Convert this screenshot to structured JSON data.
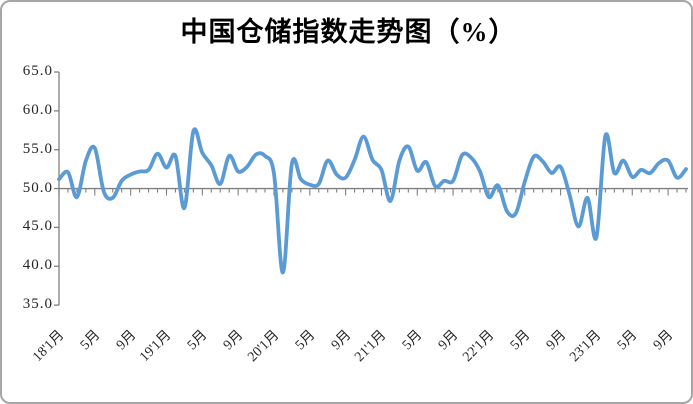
{
  "title": "中国仓储指数走势图（%）",
  "chart_data": {
    "type": "line",
    "title": "中国仓储指数走势图（%）",
    "line_style": "smooth",
    "line_color": "#5B9BD5",
    "axis_color": "#7f7f7f",
    "grid": "off",
    "legend": "none",
    "ylim": [
      35.0,
      65.0
    ],
    "y_tick_step": 5.0,
    "y_tick_labels": [
      "65.0",
      "60.0",
      "55.0",
      "50.0",
      "45.0",
      "40.0",
      "35.0"
    ],
    "category_axis_crosses_at": 50.0,
    "x_tick_label_every_n_months": 4,
    "x_tick_labels": [
      "18'1月",
      "5月",
      "9月",
      "19'1月",
      "5月",
      "9月",
      "20'1月",
      "5月",
      "9月",
      "21'1月",
      "5月",
      "9月",
      "22'1月",
      "5月",
      "9月",
      "23'1月",
      "5月",
      "9月"
    ],
    "x": [
      "2018-01",
      "2018-02",
      "2018-03",
      "2018-04",
      "2018-05",
      "2018-06",
      "2018-07",
      "2018-08",
      "2018-09",
      "2018-10",
      "2018-11",
      "2018-12",
      "2019-01",
      "2019-02",
      "2019-03",
      "2019-04",
      "2019-05",
      "2019-06",
      "2019-07",
      "2019-08",
      "2019-09",
      "2019-10",
      "2019-11",
      "2019-12",
      "2020-01",
      "2020-02",
      "2020-03",
      "2020-04",
      "2020-05",
      "2020-06",
      "2020-07",
      "2020-08",
      "2020-09",
      "2020-10",
      "2020-11",
      "2020-12",
      "2021-01",
      "2021-02",
      "2021-03",
      "2021-04",
      "2021-05",
      "2021-06",
      "2021-07",
      "2021-08",
      "2021-09",
      "2021-10",
      "2021-11",
      "2021-12",
      "2022-01",
      "2022-02",
      "2022-03",
      "2022-04",
      "2022-05",
      "2022-06",
      "2022-07",
      "2022-08",
      "2022-09",
      "2022-10",
      "2022-11",
      "2022-12",
      "2023-01",
      "2023-02",
      "2023-03",
      "2023-04",
      "2023-05",
      "2023-06",
      "2023-07",
      "2023-08",
      "2023-09",
      "2023-10",
      "2023-11"
    ],
    "series": [
      {
        "name": "中国仓储指数",
        "values": [
          51.2,
          52.1,
          48.9,
          53.6,
          55.2,
          49.6,
          48.8,
          51.0,
          51.8,
          52.2,
          52.4,
          54.5,
          52.7,
          54.2,
          47.5,
          57.4,
          54.6,
          53.0,
          50.6,
          54.2,
          52.2,
          52.8,
          54.4,
          54.2,
          51.9,
          39.2,
          53.2,
          51.2,
          50.5,
          50.6,
          53.6,
          51.8,
          51.4,
          53.7,
          56.7,
          53.7,
          52.4,
          48.4,
          53.6,
          55.4,
          52.3,
          53.4,
          50.3,
          51.0,
          51.0,
          54.3,
          54.0,
          52.2,
          48.9,
          50.4,
          47.1,
          46.8,
          50.9,
          54.1,
          53.5,
          52.0,
          52.8,
          49.2,
          45.1,
          48.8,
          43.7,
          56.8,
          52.0,
          53.6,
          51.5,
          52.4,
          52.0,
          53.3,
          53.6,
          51.4,
          52.5
        ]
      }
    ]
  }
}
